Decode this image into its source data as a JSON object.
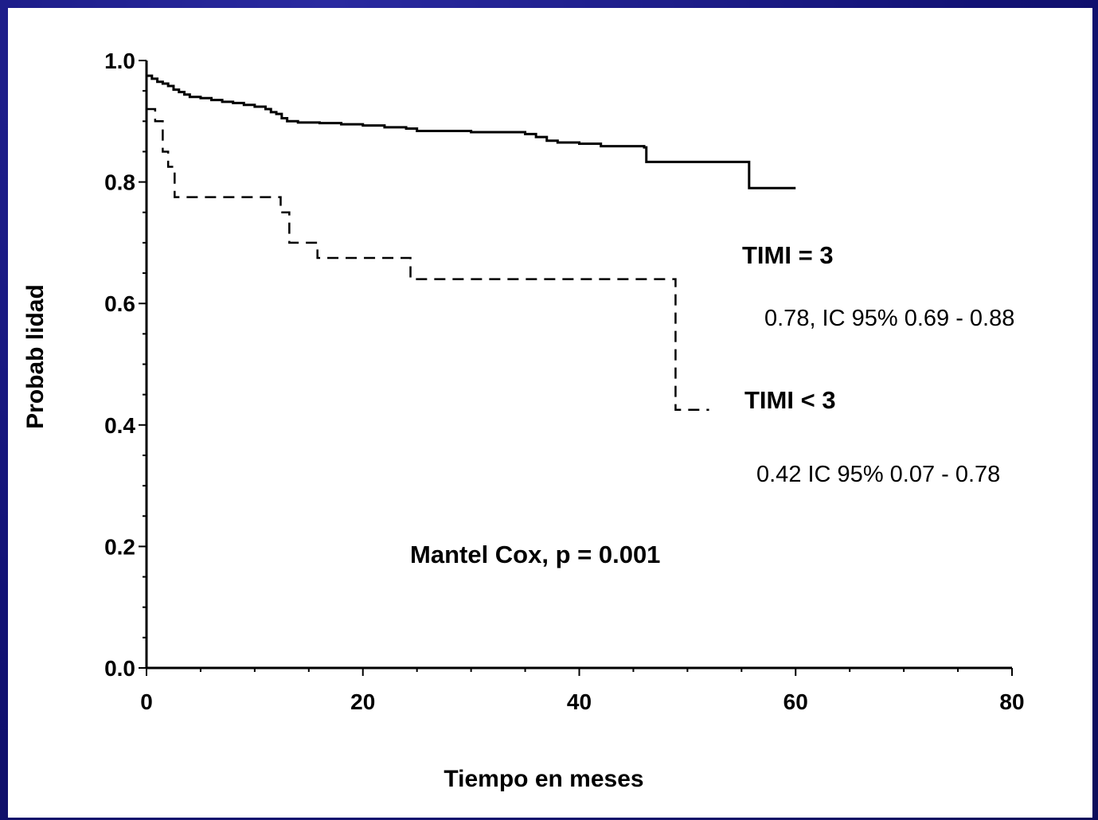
{
  "chart_data": {
    "type": "line",
    "subtype": "kaplan-meier step curve",
    "title": "",
    "xlabel": "Tiempo en meses",
    "ylabel": "Probab lidad",
    "xlim": [
      0,
      80
    ],
    "ylim": [
      0.0,
      1.0
    ],
    "x_ticks": [
      0,
      20,
      40,
      60,
      80
    ],
    "x_tick_labels": [
      "0",
      "20",
      "40",
      "60",
      "80"
    ],
    "y_ticks": [
      0.0,
      0.2,
      0.4,
      0.6,
      0.8,
      1.0
    ],
    "y_tick_labels": [
      "0.0",
      "0.2",
      "0.4",
      "0.6",
      "0.8",
      "1.0"
    ],
    "grid": false,
    "series": [
      {
        "name": "TIMI = 3",
        "style": "solid",
        "points": [
          [
            0,
            0.975
          ],
          [
            0.5,
            0.97
          ],
          [
            1,
            0.965
          ],
          [
            1.5,
            0.962
          ],
          [
            2,
            0.958
          ],
          [
            2.5,
            0.952
          ],
          [
            3,
            0.948
          ],
          [
            3.5,
            0.944
          ],
          [
            4,
            0.94
          ],
          [
            5,
            0.938
          ],
          [
            6,
            0.935
          ],
          [
            7,
            0.932
          ],
          [
            8,
            0.93
          ],
          [
            9,
            0.927
          ],
          [
            10,
            0.924
          ],
          [
            11,
            0.92
          ],
          [
            11.5,
            0.915
          ],
          [
            12,
            0.912
          ],
          [
            12.5,
            0.905
          ],
          [
            13,
            0.9
          ],
          [
            14,
            0.898
          ],
          [
            16,
            0.897
          ],
          [
            18,
            0.895
          ],
          [
            20,
            0.893
          ],
          [
            22,
            0.89
          ],
          [
            24,
            0.888
          ],
          [
            25,
            0.884
          ],
          [
            30,
            0.882
          ],
          [
            35,
            0.879
          ],
          [
            36,
            0.874
          ],
          [
            37,
            0.868
          ],
          [
            38,
            0.865
          ],
          [
            40,
            0.863
          ],
          [
            42,
            0.859
          ],
          [
            46,
            0.857
          ],
          [
            46.2,
            0.833
          ],
          [
            55.5,
            0.833
          ],
          [
            55.7,
            0.79
          ],
          [
            60,
            0.79
          ]
        ]
      },
      {
        "name": "TIMI < 3",
        "style": "dashed",
        "points": [
          [
            0,
            0.92
          ],
          [
            0.8,
            0.9
          ],
          [
            1.5,
            0.85
          ],
          [
            2,
            0.825
          ],
          [
            2.6,
            0.775
          ],
          [
            12,
            0.775
          ],
          [
            12.4,
            0.75
          ],
          [
            13.2,
            0.7
          ],
          [
            15.5,
            0.7
          ],
          [
            15.8,
            0.675
          ],
          [
            24.2,
            0.675
          ],
          [
            24.4,
            0.64
          ],
          [
            48.8,
            0.64
          ],
          [
            48.9,
            0.425
          ],
          [
            52,
            0.425
          ]
        ]
      }
    ],
    "annotations": [
      {
        "text": "TIMI = 3",
        "weight": "bold"
      },
      {
        "text": "0.78, IC 95% 0.69 - 0.88",
        "weight": "normal"
      },
      {
        "text": "TIMI < 3",
        "weight": "bold"
      },
      {
        "text": "0.42 IC 95% 0.07 - 0.78",
        "weight": "normal"
      },
      {
        "text": "Mantel  Cox, p = 0.001",
        "weight": "bold"
      }
    ]
  },
  "colors": {
    "slide_background": "#141478",
    "panel": "#ffffff",
    "ink": "#000000"
  }
}
